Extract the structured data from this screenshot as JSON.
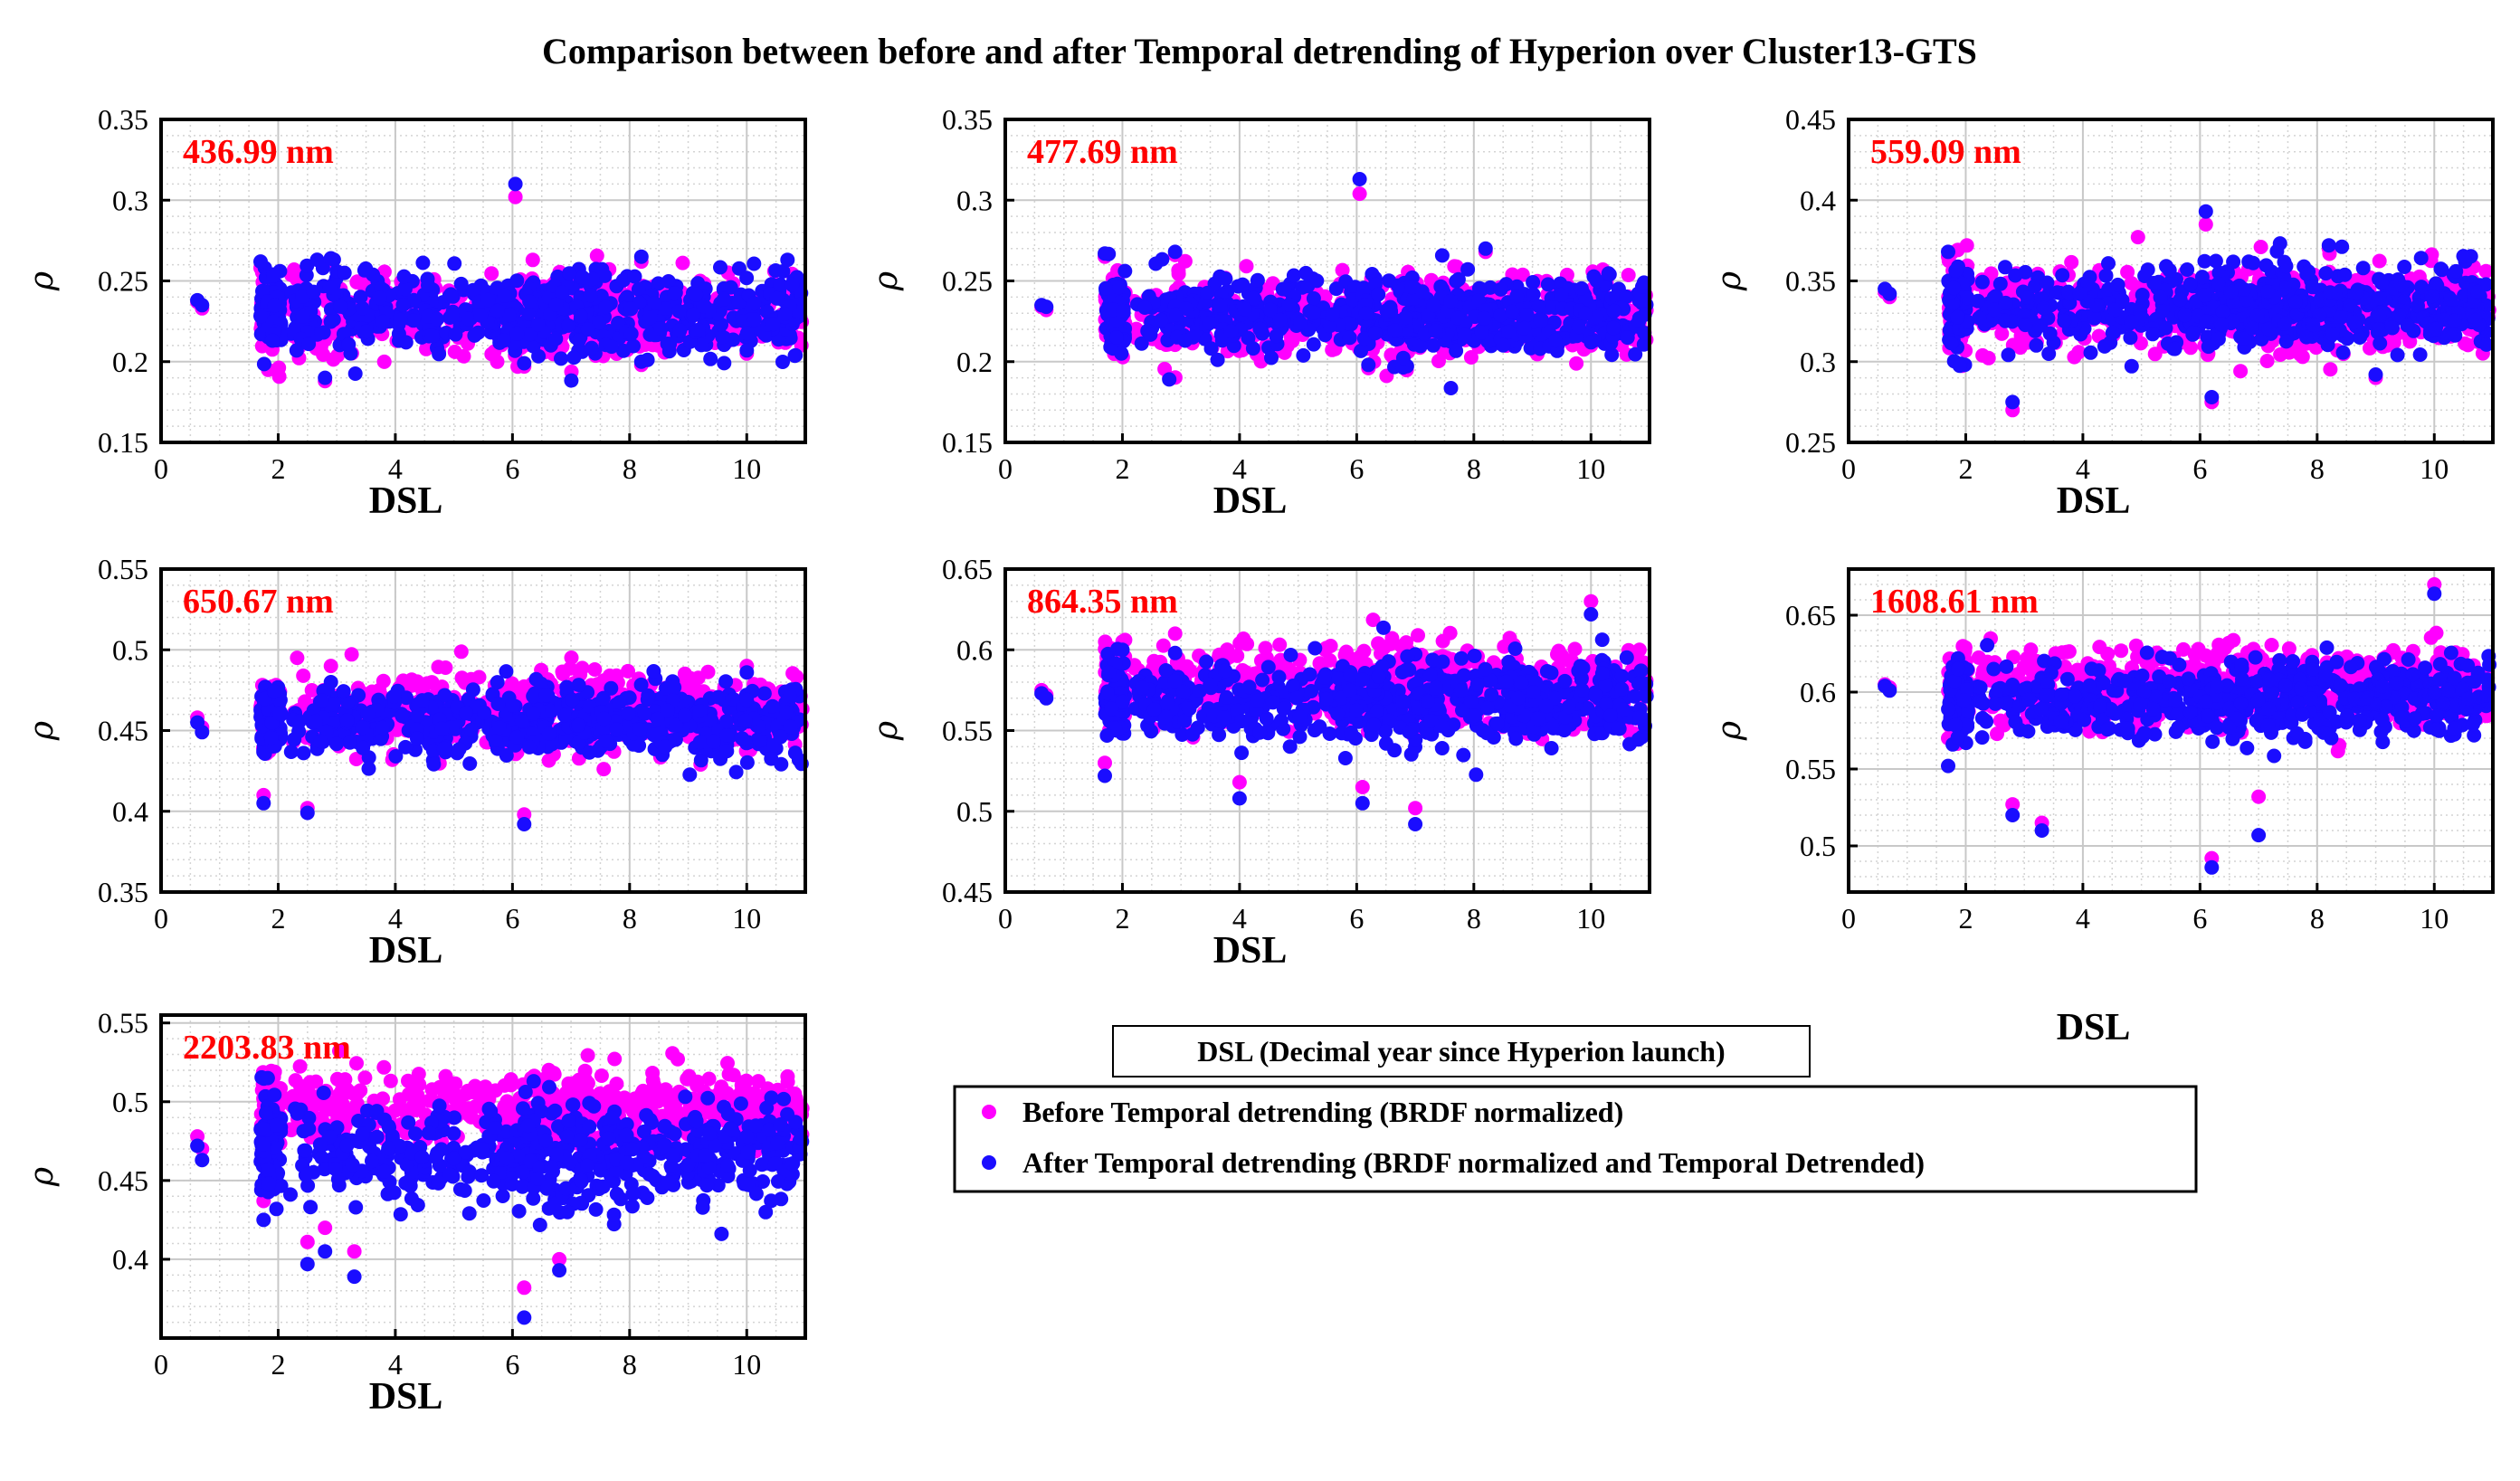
{
  "figure": {
    "title": "Comparison between before and after Temporal detrending of Hyperion over Cluster13-GTS",
    "legend_header": "DSL (Decimal year since Hyperion launch)",
    "legend_placement": "bottom-center",
    "colors": {
      "before": "#ff00ff",
      "after": "#1a0dff",
      "wavelength_label": "#ff0000",
      "grid": "#c8c8c8"
    }
  },
  "chart_data": [
    {
      "type": "scatter",
      "label": "436.99 nm",
      "xlabel": "DSL",
      "ylabel": "ρ",
      "xlim": [
        0,
        11
      ],
      "ylim": [
        0.15,
        0.35
      ],
      "xticks": [
        "0",
        "2",
        "4",
        "6",
        "8",
        "10"
      ],
      "yticks": [
        "0.15",
        "0.2",
        "0.25",
        "0.3",
        "0.35"
      ],
      "grid": true,
      "series": [
        {
          "name": "Before Temporal detrending (BRDF normalized)",
          "center": 0.229,
          "spread": 0.012,
          "points": [
            [
              0.62,
              0.237
            ],
            [
              0.7,
              0.233
            ],
            [
              1.7,
              0.258
            ],
            [
              1.9,
              0.215
            ],
            [
              2.8,
              0.188
            ],
            [
              2.9,
              0.262
            ],
            [
              6.05,
              0.302
            ],
            [
              6.2,
              0.197
            ],
            [
              8.2,
              0.262
            ],
            [
              8.2,
              0.198
            ],
            [
              10.0,
              0.205
            ]
          ]
        },
        {
          "name": "After Temporal detrending (BRDF normalized and Temporal Detrended)",
          "center": 0.23,
          "spread": 0.012,
          "points": [
            [
              0.62,
              0.238
            ],
            [
              0.7,
              0.235
            ],
            [
              1.7,
              0.262
            ],
            [
              1.9,
              0.213
            ],
            [
              2.8,
              0.19
            ],
            [
              2.9,
              0.264
            ],
            [
              6.05,
              0.31
            ],
            [
              6.2,
              0.199
            ],
            [
              8.2,
              0.265
            ],
            [
              8.2,
              0.2
            ],
            [
              10.0,
              0.207
            ]
          ]
        }
      ]
    },
    {
      "type": "scatter",
      "label": "477.69 nm",
      "xlabel": "DSL",
      "ylabel": "ρ",
      "xlim": [
        0,
        11
      ],
      "ylim": [
        0.15,
        0.35
      ],
      "xticks": [
        "0",
        "2",
        "4",
        "6",
        "8",
        "10"
      ],
      "yticks": [
        "0.15",
        "0.2",
        "0.25",
        "0.3",
        "0.35"
      ],
      "grid": true,
      "series": [
        {
          "name": "Before Temporal detrending (BRDF normalized)",
          "center": 0.227,
          "spread": 0.012,
          "points": [
            [
              0.62,
              0.234
            ],
            [
              0.7,
              0.232
            ],
            [
              1.7,
              0.265
            ],
            [
              1.9,
              0.213
            ],
            [
              2.8,
              0.19
            ],
            [
              2.9,
              0.266
            ],
            [
              6.05,
              0.304
            ],
            [
              6.2,
              0.196
            ],
            [
              8.2,
              0.268
            ],
            [
              10.0,
              0.21
            ]
          ]
        },
        {
          "name": "After Temporal detrending (BRDF normalized and Temporal Detrended)",
          "center": 0.229,
          "spread": 0.012,
          "points": [
            [
              0.62,
              0.235
            ],
            [
              0.7,
              0.234
            ],
            [
              1.7,
              0.267
            ],
            [
              1.9,
              0.215
            ],
            [
              2.8,
              0.189
            ],
            [
              2.9,
              0.268
            ],
            [
              6.05,
              0.313
            ],
            [
              6.2,
              0.198
            ],
            [
              8.2,
              0.27
            ],
            [
              10.0,
              0.212
            ]
          ]
        }
      ]
    },
    {
      "type": "scatter",
      "label": "559.09 nm",
      "xlabel": "DSL",
      "ylabel": "ρ",
      "xlim": [
        0,
        11
      ],
      "ylim": [
        0.25,
        0.45
      ],
      "xticks": [
        "0",
        "2",
        "4",
        "6",
        "8",
        "10"
      ],
      "yticks": [
        "0.25",
        "0.3",
        "0.35",
        "0.4",
        "0.45"
      ],
      "grid": true,
      "series": [
        {
          "name": "Before Temporal detrending (BRDF normalized)",
          "center": 0.332,
          "spread": 0.013,
          "points": [
            [
              0.62,
              0.343
            ],
            [
              0.7,
              0.34
            ],
            [
              1.7,
              0.365
            ],
            [
              2.8,
              0.27
            ],
            [
              6.1,
              0.385
            ],
            [
              6.2,
              0.275
            ],
            [
              8.2,
              0.37
            ],
            [
              9.0,
              0.29
            ]
          ]
        },
        {
          "name": "After Temporal detrending (BRDF normalized and Temporal Detrended)",
          "center": 0.334,
          "spread": 0.013,
          "points": [
            [
              0.62,
              0.345
            ],
            [
              0.7,
              0.342
            ],
            [
              1.7,
              0.368
            ],
            [
              2.8,
              0.275
            ],
            [
              6.1,
              0.393
            ],
            [
              6.2,
              0.278
            ],
            [
              8.2,
              0.372
            ],
            [
              9.0,
              0.292
            ]
          ]
        }
      ]
    },
    {
      "type": "scatter",
      "label": "650.67 nm",
      "xlabel": "DSL",
      "ylabel": "ρ",
      "xlim": [
        0,
        11
      ],
      "ylim": [
        0.35,
        0.55
      ],
      "xticks": [
        "0",
        "2",
        "4",
        "6",
        "8",
        "10"
      ],
      "yticks": [
        "0.35",
        "0.4",
        "0.45",
        "0.5",
        "0.55"
      ],
      "grid": true,
      "series": [
        {
          "name": "Before Temporal detrending (BRDF normalized)",
          "center": 0.462,
          "spread": 0.011,
          "points": [
            [
              0.62,
              0.458
            ],
            [
              0.7,
              0.452
            ],
            [
              1.75,
              0.41
            ],
            [
              2.5,
              0.402
            ],
            [
              2.9,
              0.49
            ],
            [
              6.2,
              0.398
            ],
            [
              10.0,
              0.49
            ]
          ]
        },
        {
          "name": "After Temporal detrending (BRDF normalized and Temporal Detrended)",
          "center": 0.455,
          "spread": 0.011,
          "points": [
            [
              0.62,
              0.455
            ],
            [
              0.7,
              0.449
            ],
            [
              1.75,
              0.405
            ],
            [
              2.5,
              0.399
            ],
            [
              2.9,
              0.48
            ],
            [
              6.2,
              0.392
            ],
            [
              10.0,
              0.486
            ]
          ]
        }
      ]
    },
    {
      "type": "scatter",
      "label": "864.35 nm",
      "xlabel": "DSL",
      "ylabel": "ρ",
      "xlim": [
        0,
        11
      ],
      "ylim": [
        0.45,
        0.65
      ],
      "xticks": [
        "0",
        "2",
        "4",
        "6",
        "8",
        "10"
      ],
      "yticks": [
        "0.45",
        "0.5",
        "0.55",
        "0.6",
        "0.65"
      ],
      "grid": true,
      "series": [
        {
          "name": "Before Temporal detrending (BRDF normalized)",
          "center": 0.578,
          "spread": 0.012,
          "points": [
            [
              0.62,
              0.575
            ],
            [
              0.7,
              0.572
            ],
            [
              1.7,
              0.53
            ],
            [
              2.0,
              0.605
            ],
            [
              2.9,
              0.61
            ],
            [
              4.0,
              0.518
            ],
            [
              6.1,
              0.515
            ],
            [
              7.0,
              0.502
            ],
            [
              10.0,
              0.63
            ]
          ]
        },
        {
          "name": "After Temporal detrending (BRDF normalized and Temporal Detrended)",
          "center": 0.568,
          "spread": 0.012,
          "points": [
            [
              0.62,
              0.573
            ],
            [
              0.7,
              0.57
            ],
            [
              1.7,
              0.522
            ],
            [
              2.0,
              0.6
            ],
            [
              2.9,
              0.598
            ],
            [
              4.0,
              0.508
            ],
            [
              6.1,
              0.505
            ],
            [
              7.0,
              0.492
            ],
            [
              10.0,
              0.622
            ]
          ]
        }
      ]
    },
    {
      "type": "scatter",
      "label": "1608.61 nm",
      "xlabel": "DSL",
      "ylabel": "ρ",
      "xlim": [
        0,
        11
      ],
      "ylim": [
        0.47,
        0.68
      ],
      "xticks": [
        "0",
        "2",
        "4",
        "6",
        "8",
        "10"
      ],
      "yticks": [
        "0.5",
        "0.55",
        "0.6",
        "0.65"
      ],
      "grid": true,
      "series": [
        {
          "name": "Before Temporal detrending (BRDF normalized)",
          "center": 0.605,
          "spread": 0.012,
          "points": [
            [
              0.62,
              0.605
            ],
            [
              0.7,
              0.603
            ],
            [
              1.7,
              0.57
            ],
            [
              2.8,
              0.527
            ],
            [
              3.3,
              0.515
            ],
            [
              6.2,
              0.492
            ],
            [
              7.0,
              0.532
            ],
            [
              10.0,
              0.67
            ]
          ]
        },
        {
          "name": "After Temporal detrending (BRDF normalized and Temporal Detrended)",
          "center": 0.595,
          "spread": 0.012,
          "points": [
            [
              0.62,
              0.604
            ],
            [
              0.7,
              0.601
            ],
            [
              1.7,
              0.552
            ],
            [
              2.8,
              0.52
            ],
            [
              3.3,
              0.51
            ],
            [
              6.2,
              0.486
            ],
            [
              7.0,
              0.507
            ],
            [
              10.0,
              0.664
            ]
          ]
        }
      ]
    },
    {
      "type": "scatter",
      "label": "2203.83 nm",
      "xlabel": "DSL",
      "ylabel": "ρ",
      "xlim": [
        0,
        11
      ],
      "ylim": [
        0.35,
        0.555
      ],
      "xticks": [
        "0",
        "2",
        "4",
        "6",
        "8",
        "10"
      ],
      "yticks": [
        "0.4",
        "0.45",
        "0.5",
        "0.55"
      ],
      "grid": true,
      "series": [
        {
          "name": "Before Temporal detrending (BRDF normalized)",
          "center": 0.495,
          "spread": 0.012,
          "points": [
            [
              0.62,
              0.478
            ],
            [
              0.7,
              0.47
            ],
            [
              1.75,
              0.437
            ],
            [
              2.5,
              0.411
            ],
            [
              2.8,
              0.42
            ],
            [
              3.3,
              0.405
            ],
            [
              6.2,
              0.382
            ],
            [
              6.8,
              0.4
            ],
            [
              10.0,
              0.5
            ]
          ]
        },
        {
          "name": "After Temporal detrending (BRDF normalized and Temporal Detrended)",
          "center": 0.468,
          "spread": 0.016,
          "points": [
            [
              0.62,
              0.472
            ],
            [
              0.7,
              0.463
            ],
            [
              1.75,
              0.425
            ],
            [
              2.5,
              0.397
            ],
            [
              2.8,
              0.405
            ],
            [
              3.3,
              0.389
            ],
            [
              6.2,
              0.363
            ],
            [
              6.8,
              0.393
            ],
            [
              10.0,
              0.478
            ]
          ]
        }
      ]
    }
  ]
}
